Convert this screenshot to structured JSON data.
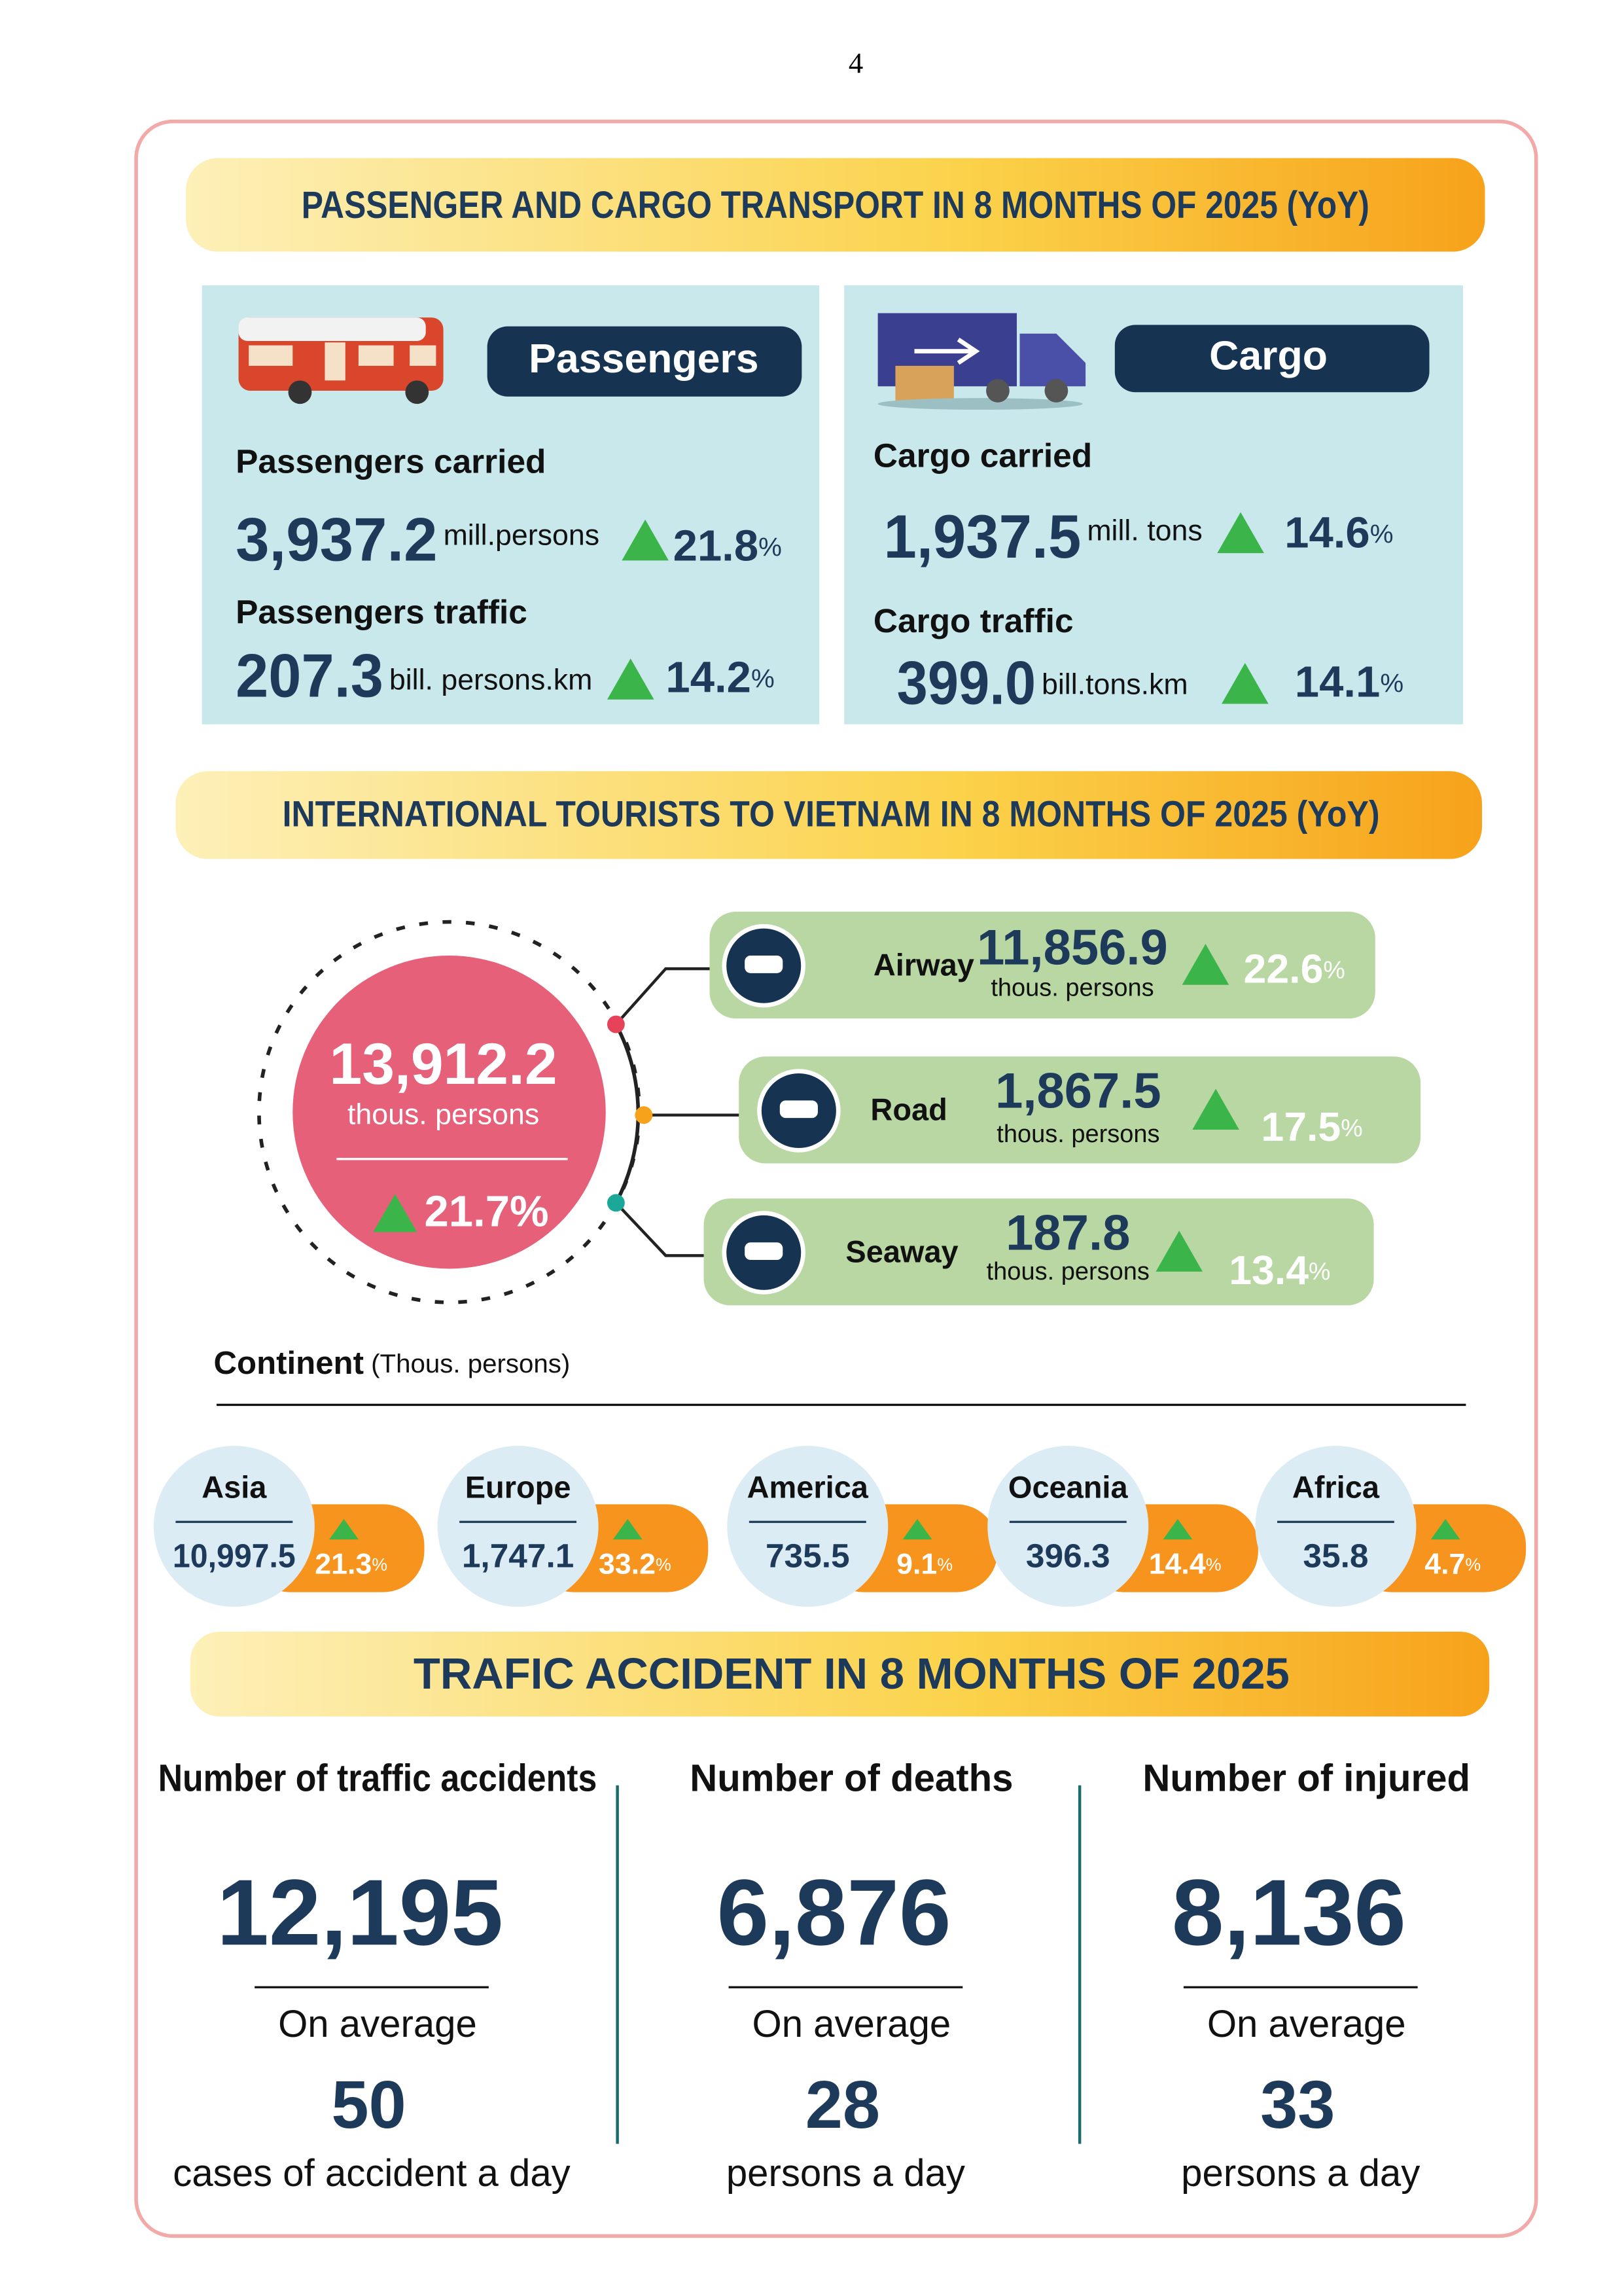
{
  "page_number": "4",
  "transport": {
    "title": "PASSENGER AND CARGO TRANSPORT IN 8 MONTHS OF 2025 (YoY)",
    "passengers": {
      "label": "Passengers",
      "items": [
        {
          "name": "Passengers carried",
          "value": "3,937.2",
          "unit": "mill.persons",
          "change": "21.8",
          "change_unit": "%"
        },
        {
          "name": "Passengers traffic",
          "value": "207.3",
          "unit": "bill. persons.km",
          "change": "14.2",
          "change_unit": "%"
        }
      ]
    },
    "cargo": {
      "label": "Cargo",
      "items": [
        {
          "name": "Cargo carried",
          "value": "1,937.5",
          "unit": "mill. tons",
          "change": "14.6",
          "change_unit": "%"
        },
        {
          "name": "Cargo traffic",
          "value": "399.0",
          "unit": "bill.tons.km",
          "change": "14.1",
          "change_unit": "%"
        }
      ]
    }
  },
  "tourists": {
    "title": "INTERNATIONAL TOURISTS TO VIETNAM IN 8 MONTHS OF 2025 (YoY)",
    "total": {
      "value": "13,912.2",
      "unit": "thous. persons",
      "change": "21.7%"
    },
    "modes": [
      {
        "name": "Airway",
        "value": "11,856.9",
        "unit": "thous. persons",
        "change": "22.6",
        "change_unit": "%"
      },
      {
        "name": "Road",
        "value": "1,867.5",
        "unit": "thous. persons",
        "change": "17.5",
        "change_unit": "%"
      },
      {
        "name": "Seaway",
        "value": "187.8",
        "unit": "thous. persons",
        "change": "13.4",
        "change_unit": "%"
      }
    ],
    "continent_label": "Continent",
    "continent_unit": "(Thous. persons)",
    "continents": [
      {
        "name": "Asia",
        "value": "10,997.5",
        "change": "21.3",
        "change_unit": "%"
      },
      {
        "name": "Europe",
        "value": "1,747.1",
        "change": "33.2",
        "change_unit": "%"
      },
      {
        "name": "America",
        "value": "735.5",
        "change": "9.1",
        "change_unit": "%"
      },
      {
        "name": "Oceania",
        "value": "396.3",
        "change": "14.4",
        "change_unit": "%"
      },
      {
        "name": "Africa",
        "value": "35.8",
        "change": "4.7",
        "change_unit": "%"
      }
    ]
  },
  "accidents": {
    "title": "TRAFIC ACCIDENT IN 8 MONTHS OF 2025",
    "columns": [
      {
        "heading": "Number of traffic accidents",
        "value": "12,195",
        "avg_label": "On average",
        "avg_value": "50",
        "avg_unit": "cases of accident a day"
      },
      {
        "heading": "Number of deaths",
        "value": "6,876",
        "avg_label": "On average",
        "avg_value": "28",
        "avg_unit": "persons a day"
      },
      {
        "heading": "Number of injured",
        "value": "8,136",
        "avg_label": "On average",
        "avg_value": "33",
        "avg_unit": "persons a day"
      }
    ]
  }
}
